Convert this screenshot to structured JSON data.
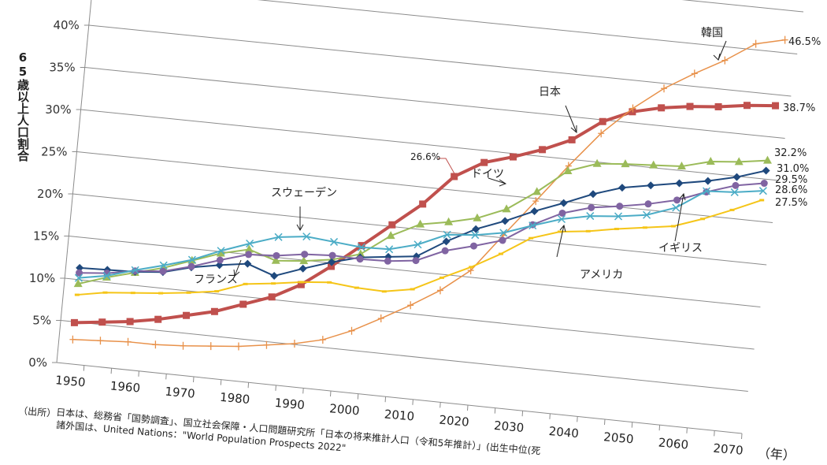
{
  "chart_data": {
    "type": "line",
    "title": "",
    "ylabel": "65歳以上人口割合",
    "xlabel": "",
    "x_unit": "（年）",
    "ylim": [
      0,
      50
    ],
    "x_range": [
      1950,
      2070
    ],
    "grid": true,
    "x": [
      1950,
      1955,
      1960,
      1965,
      1970,
      1975,
      1980,
      1985,
      1990,
      1995,
      2000,
      2005,
      2010,
      2015,
      2020,
      2025,
      2030,
      2035,
      2040,
      2045,
      2050,
      2055,
      2060,
      2065,
      2070
    ],
    "x_ticks": [
      "1950",
      "1960",
      "1970",
      "1980",
      "1990",
      "2000",
      "2010",
      "2020",
      "2030",
      "2040",
      "2050",
      "2060",
      "2070"
    ],
    "y_ticks": [
      "0%",
      "5%",
      "10%",
      "15%",
      "20%",
      "25%",
      "30%",
      "35%",
      "40%"
    ],
    "series": [
      {
        "name": "日本",
        "color": "#c0504d",
        "marker": "square",
        "end_label": "38.7%",
        "values": [
          4.9,
          5.3,
          5.7,
          6.3,
          7.1,
          7.9,
          9.1,
          10.3,
          12.1,
          14.6,
          17.4,
          20.2,
          23.0,
          26.6,
          28.6,
          29.6,
          30.8,
          32.3,
          34.8,
          36.3,
          37.1,
          37.6,
          37.9,
          38.4,
          38.7
        ]
      },
      {
        "name": "韓国",
        "color": "#e8914a",
        "marker": "plus",
        "end_label": "46.5%",
        "values": [
          2.9,
          3.1,
          3.3,
          3.3,
          3.5,
          3.8,
          4.1,
          4.6,
          5.1,
          5.9,
          7.3,
          9.1,
          11.0,
          13.1,
          15.8,
          20.3,
          24.7,
          29.2,
          33.4,
          36.7,
          39.4,
          41.5,
          43.4,
          45.7,
          46.5
        ]
      },
      {
        "name": "ドイツ",
        "color": "#9bbb59",
        "marker": "triangle",
        "end_label": "32.2%",
        "values": [
          9.5,
          10.6,
          11.5,
          12.4,
          13.6,
          14.8,
          15.6,
          14.6,
          14.9,
          15.4,
          16.4,
          18.9,
          20.6,
          21.2,
          22.0,
          23.4,
          25.8,
          28.6,
          29.8,
          30.1,
          30.3,
          30.5,
          31.4,
          31.7,
          32.2
        ]
      },
      {
        "name": "フランス",
        "color": "#1f497d",
        "marker": "diamond",
        "end_label": "31.0%",
        "values": [
          11.4,
          11.5,
          11.6,
          11.9,
          12.8,
          13.4,
          13.9,
          12.8,
          14.0,
          15.1,
          16.0,
          16.4,
          16.8,
          18.9,
          20.7,
          22.0,
          23.5,
          24.8,
          26.2,
          27.3,
          27.9,
          28.5,
          29.1,
          29.9,
          31.0
        ]
      },
      {
        "name": "イギリス",
        "color": "#8064a2",
        "marker": "circle",
        "end_label": "29.5%",
        "values": [
          10.8,
          11.1,
          11.7,
          12.0,
          12.9,
          14.0,
          15.0,
          15.2,
          15.7,
          15.9,
          15.8,
          15.9,
          16.3,
          17.8,
          18.7,
          19.7,
          21.9,
          23.6,
          24.6,
          25.1,
          25.7,
          26.5,
          27.8,
          28.9,
          29.5
        ]
      },
      {
        "name": "スウェーデン",
        "color": "#4bacc6",
        "marker": "x",
        "end_label": "28.6%",
        "values": [
          10.2,
          10.8,
          11.8,
          12.7,
          13.7,
          15.1,
          16.3,
          17.4,
          17.8,
          17.5,
          17.2,
          17.3,
          18.2,
          19.7,
          20.0,
          20.6,
          21.8,
          22.9,
          23.6,
          23.9,
          24.4,
          25.6,
          27.9,
          28.1,
          28.6
        ]
      },
      {
        "name": "アメリカ",
        "color": "#f5c518",
        "marker": "dash",
        "end_label": "27.5%",
        "values": [
          8.2,
          8.8,
          9.1,
          9.4,
          9.8,
          10.3,
          11.5,
          11.9,
          12.4,
          12.7,
          12.4,
          12.3,
          12.9,
          14.6,
          16.2,
          18.1,
          20.3,
          21.4,
          21.8,
          22.4,
          22.9,
          23.4,
          24.6,
          26.0,
          27.5
        ]
      }
    ],
    "annotations": {
      "japan_2015": "26.6%"
    }
  },
  "footnote": {
    "source_label": "（出所）",
    "line1": "日本は、総務省「国勢調査」、国立社会保障・人口問題研究所「日本の将来推計人口（令和5年推計）」(出生中位(死",
    "line2": "諸外国は、United Nations：\"World Population Prospects 2022\""
  }
}
